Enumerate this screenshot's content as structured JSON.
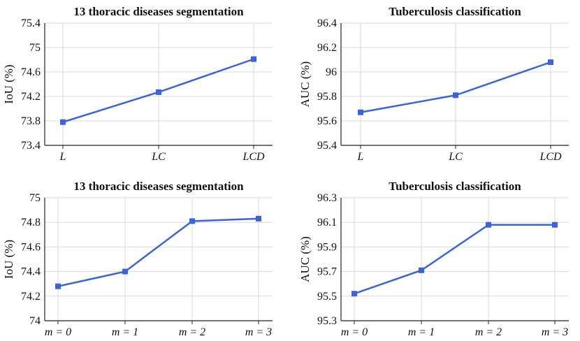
{
  "chart_data": [
    {
      "type": "line",
      "title": "13 thoracic diseases segmentation",
      "ylabel": "IoU (%)",
      "xlabel": "",
      "categories": [
        "L",
        "LC",
        "LCD"
      ],
      "values": [
        73.78,
        74.27,
        74.81
      ],
      "ylim": [
        73.4,
        75.4
      ],
      "yticks": [
        73.4,
        73.8,
        74.2,
        74.6,
        75,
        75.4
      ],
      "ytick_labels": [
        "73.4",
        "73.8",
        "74.2",
        "74.6",
        "75",
        "75.4"
      ],
      "grid": true
    },
    {
      "type": "line",
      "title": "Tuberculosis classification",
      "ylabel": "AUC (%)",
      "xlabel": "",
      "categories": [
        "L",
        "LC",
        "LCD"
      ],
      "values": [
        95.67,
        95.81,
        96.08
      ],
      "ylim": [
        95.4,
        96.4
      ],
      "yticks": [
        95.4,
        95.6,
        95.8,
        96,
        96.2,
        96.4
      ],
      "ytick_labels": [
        "95.4",
        "95.6",
        "95.8",
        "96",
        "96.2",
        "96.4"
      ],
      "grid": true
    },
    {
      "type": "line",
      "title": "13 thoracic diseases segmentation",
      "ylabel": "IoU (%)",
      "xlabel": "",
      "categories": [
        "m = 0",
        "m = 1",
        "m = 2",
        "m = 3"
      ],
      "values": [
        74.28,
        74.4,
        74.81,
        74.83
      ],
      "ylim": [
        74,
        75
      ],
      "yticks": [
        74,
        74.2,
        74.4,
        74.6,
        74.8,
        75
      ],
      "ytick_labels": [
        "74",
        "74.2",
        "74.4",
        "74.6",
        "74.8",
        "75"
      ],
      "grid": true
    },
    {
      "type": "line",
      "title": "Tuberculosis classification",
      "ylabel": "AUC (%)",
      "xlabel": "",
      "categories": [
        "m = 0",
        "m = 1",
        "m = 2",
        "m = 3"
      ],
      "values": [
        95.52,
        95.71,
        96.08,
        96.08
      ],
      "ylim": [
        95.3,
        96.3
      ],
      "yticks": [
        95.3,
        95.5,
        95.7,
        95.9,
        96.1,
        96.3
      ],
      "ytick_labels": [
        "95.3",
        "95.5",
        "95.7",
        "95.9",
        "96.1",
        "96.3"
      ],
      "grid": true
    }
  ],
  "colors": {
    "series": "#3c63d9",
    "grid": "#d9d9d9",
    "axis": "#222222"
  }
}
